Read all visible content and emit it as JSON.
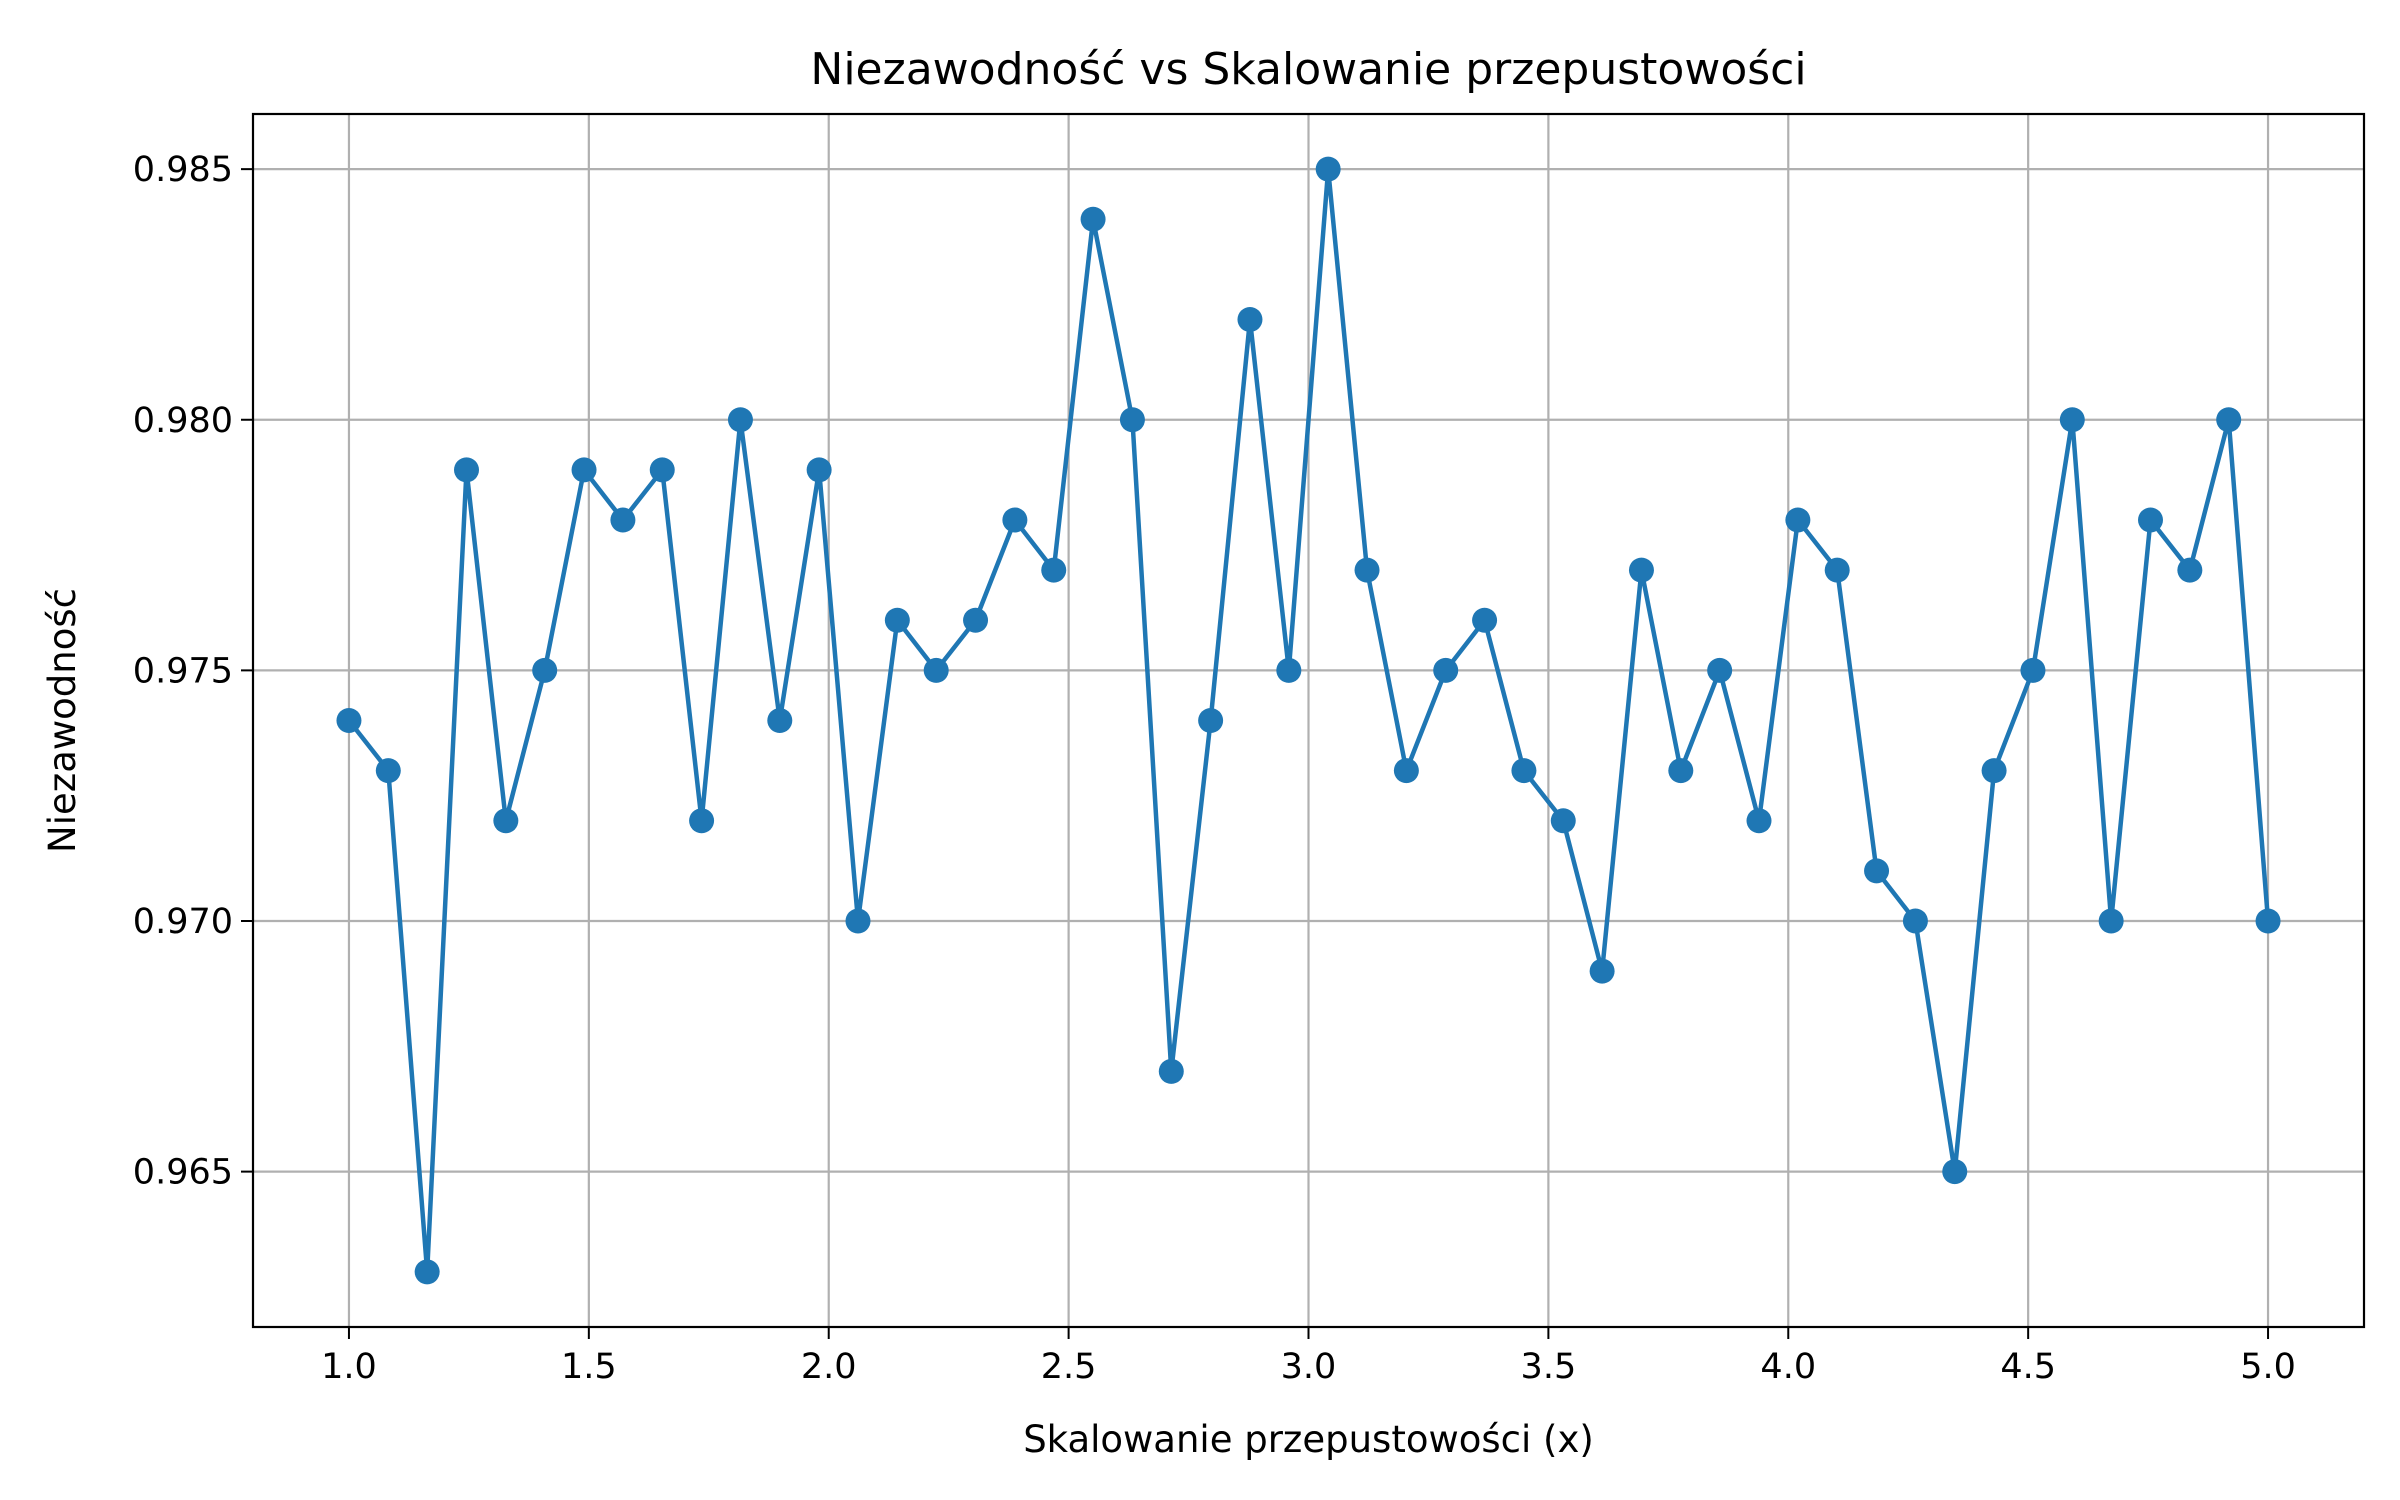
{
  "chart_data": {
    "type": "line",
    "title": "Niezawodność vs Skalowanie przepustowości",
    "xlabel": "Skalowanie przepustowości (x)",
    "ylabel": "Niezawodność",
    "xlim": [
      0.8,
      5.2
    ],
    "ylim": [
      0.9619,
      0.9861
    ],
    "xticks": [
      1.0,
      1.5,
      2.0,
      2.5,
      3.0,
      3.5,
      4.0,
      4.5,
      5.0
    ],
    "xtick_labels": [
      "1.0",
      "1.5",
      "2.0",
      "2.5",
      "3.0",
      "3.5",
      "4.0",
      "4.5",
      "5.0"
    ],
    "yticks": [
      0.965,
      0.97,
      0.975,
      0.98,
      0.985
    ],
    "ytick_labels": [
      "0.965",
      "0.970",
      "0.975",
      "0.980",
      "0.985"
    ],
    "grid": true,
    "legend": "none",
    "colors": {
      "series": "#1f77b4",
      "grid": "#b0b0b0",
      "axes": "#000000"
    },
    "series": [
      {
        "marker": "circle",
        "x": [
          1.0,
          1.082,
          1.163,
          1.245,
          1.327,
          1.408,
          1.49,
          1.571,
          1.653,
          1.735,
          1.816,
          1.898,
          1.98,
          2.061,
          2.143,
          2.224,
          2.306,
          2.388,
          2.469,
          2.551,
          2.633,
          2.714,
          2.796,
          2.878,
          2.959,
          3.041,
          3.122,
          3.204,
          3.286,
          3.367,
          3.449,
          3.531,
          3.612,
          3.694,
          3.776,
          3.857,
          3.939,
          4.02,
          4.102,
          4.184,
          4.265,
          4.347,
          4.429,
          4.51,
          4.592,
          4.673,
          4.755,
          4.837,
          4.918,
          5.0
        ],
        "y": [
          0.974,
          0.973,
          0.963,
          0.979,
          0.972,
          0.975,
          0.979,
          0.978,
          0.979,
          0.972,
          0.98,
          0.974,
          0.979,
          0.97,
          0.976,
          0.975,
          0.976,
          0.978,
          0.977,
          0.984,
          0.98,
          0.967,
          0.974,
          0.982,
          0.975,
          0.985,
          0.977,
          0.973,
          0.975,
          0.976,
          0.973,
          0.972,
          0.969,
          0.977,
          0.973,
          0.975,
          0.972,
          0.978,
          0.977,
          0.971,
          0.97,
          0.965,
          0.973,
          0.975,
          0.98,
          0.97,
          0.978,
          0.977,
          0.98,
          0.97
        ]
      }
    ]
  }
}
